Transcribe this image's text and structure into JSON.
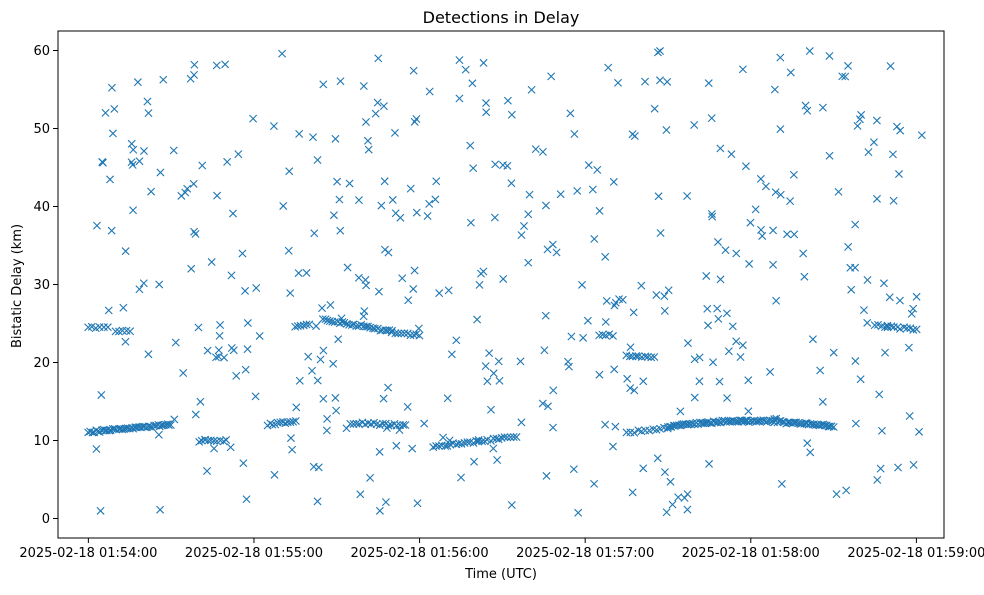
{
  "chart_data": {
    "type": "scatter",
    "title": "Detections in Delay",
    "xlabel": "Time (UTC)",
    "ylabel": "Bistatic Delay (km)",
    "x_unit": "time",
    "xlim": [
      "2025-02-18 01:53:49",
      "2025-02-18 01:59:10"
    ],
    "ylim": [
      -2.5,
      62.5
    ],
    "x_ticks": [
      {
        "value": "2025-02-18 01:54:00",
        "label": "2025-02-18 01:54:00"
      },
      {
        "value": "2025-02-18 01:55:00",
        "label": "2025-02-18 01:55:00"
      },
      {
        "value": "2025-02-18 01:56:00",
        "label": "2025-02-18 01:56:00"
      },
      {
        "value": "2025-02-18 01:57:00",
        "label": "2025-02-18 01:57:00"
      },
      {
        "value": "2025-02-18 01:58:00",
        "label": "2025-02-18 01:58:00"
      },
      {
        "value": "2025-02-18 01:59:00",
        "label": "2025-02-18 01:59:00"
      }
    ],
    "y_ticks": [
      0,
      10,
      20,
      30,
      40,
      50,
      60
    ],
    "grid": false,
    "legend": "none",
    "marker": "x",
    "color": "#1f77b4",
    "series": [
      {
        "tracks": [
          {
            "start": "2025-02-18 01:54:00",
            "end": "2025-02-18 01:54:30",
            "y_start": 11.1,
            "y_end": 12.0,
            "count": 45
          },
          {
            "start": "2025-02-18 01:54:40",
            "end": "2025-02-18 01:54:50",
            "y_start": 10.0,
            "y_end": 10.0,
            "count": 10
          },
          {
            "start": "2025-02-18 01:55:05",
            "end": "2025-02-18 01:55:15",
            "y_start": 12.0,
            "y_end": 12.5,
            "count": 12
          },
          {
            "start": "2025-02-18 01:55:35",
            "end": "2025-02-18 01:55:55",
            "y_start": 12.2,
            "y_end": 12.0,
            "count": 20
          },
          {
            "start": "2025-02-18 01:56:05",
            "end": "2025-02-18 01:56:35",
            "y_start": 9.2,
            "y_end": 10.5,
            "count": 30
          },
          {
            "start": "2025-02-18 01:57:15",
            "end": "2025-02-18 01:57:30",
            "y_start": 11.0,
            "y_end": 11.5,
            "count": 12
          },
          {
            "start": "2025-02-18 01:57:30",
            "end": "2025-02-18 01:58:30",
            "y_start": 11.8,
            "y_end": 11.8,
            "count": 95,
            "peak": 12.5
          },
          {
            "start": "2025-02-18 01:54:00",
            "end": "2025-02-18 01:54:07",
            "y_start": 24.5,
            "y_end": 24.5,
            "count": 6
          },
          {
            "start": "2025-02-18 01:54:10",
            "end": "2025-02-18 01:54:15",
            "y_start": 24.0,
            "y_end": 24.0,
            "count": 5
          },
          {
            "start": "2025-02-18 01:55:15",
            "end": "2025-02-18 01:55:20",
            "y_start": 24.6,
            "y_end": 25.0,
            "count": 6
          },
          {
            "start": "2025-02-18 01:55:25",
            "end": "2025-02-18 01:55:50",
            "y_start": 25.5,
            "y_end": 24.0,
            "count": 30
          },
          {
            "start": "2025-02-18 01:55:50",
            "end": "2025-02-18 01:56:00",
            "y_start": 23.8,
            "y_end": 23.5,
            "count": 10
          },
          {
            "start": "2025-02-18 01:57:05",
            "end": "2025-02-18 01:57:10",
            "y_start": 23.5,
            "y_end": 23.5,
            "count": 5
          },
          {
            "start": "2025-02-18 01:57:15",
            "end": "2025-02-18 01:57:25",
            "y_start": 20.8,
            "y_end": 20.7,
            "count": 10
          },
          {
            "start": "2025-02-18 01:58:45",
            "end": "2025-02-18 01:59:00",
            "y_start": 24.8,
            "y_end": 24.2,
            "count": 14
          }
        ],
        "scattered": {
          "count": 440,
          "x_range": [
            "2025-02-18 01:54:00",
            "2025-02-18 01:59:02"
          ],
          "y_range": [
            0.5,
            60.0
          ]
        }
      }
    ]
  }
}
